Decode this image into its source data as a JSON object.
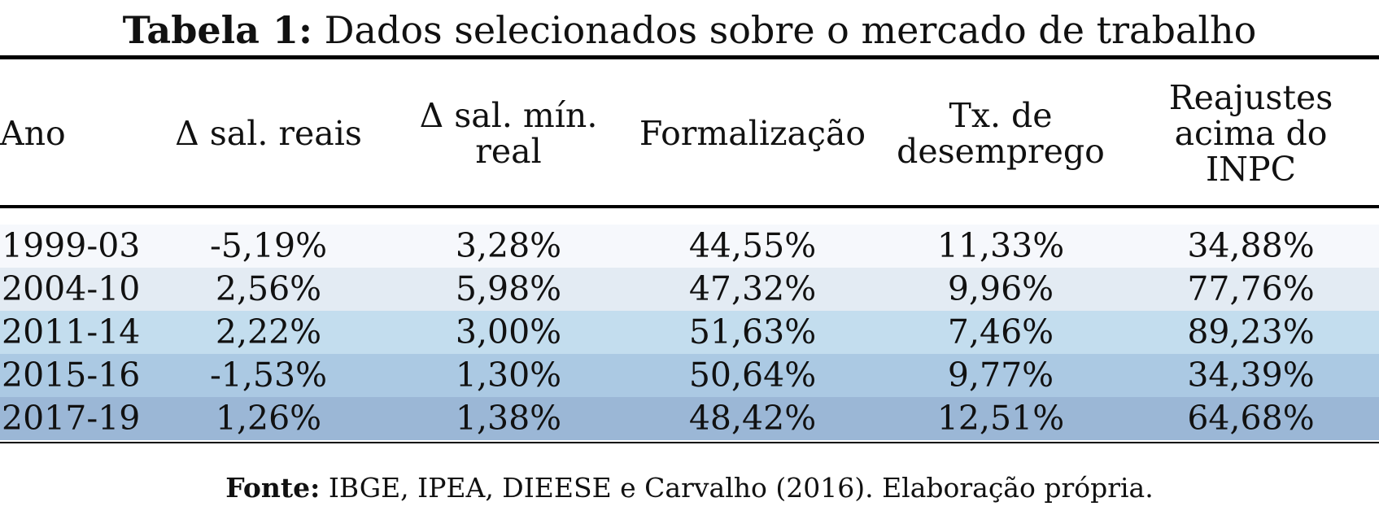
{
  "table": {
    "title_label": "Tabela 1:",
    "title_text": "Dados selecionados sobre o mercado de trabalho",
    "headers": [
      {
        "lines": [
          "Ano"
        ]
      },
      {
        "lines": [
          "Δ sal. reais"
        ]
      },
      {
        "lines": [
          "Δ sal. mín.",
          "real"
        ]
      },
      {
        "lines": [
          "Formalização"
        ]
      },
      {
        "lines": [
          "Tx. de",
          "desemprego"
        ]
      },
      {
        "lines": [
          "Reajustes",
          "acima do",
          "INPC"
        ]
      }
    ],
    "rows": [
      {
        "cells": [
          "1999-03",
          "-5,19%",
          "3,28%",
          "44,55%",
          "11,33%",
          "34,88%"
        ],
        "bg": "#f6f8fc"
      },
      {
        "cells": [
          "2004-10",
          "2,56%",
          "5,98%",
          "47,32%",
          "9,96%",
          "77,76%"
        ],
        "bg": "#e3ebf3"
      },
      {
        "cells": [
          "2011-14",
          "2,22%",
          "3,00%",
          "51,63%",
          "7,46%",
          "89,23%"
        ],
        "bg": "#c3ddee"
      },
      {
        "cells": [
          "2015-16",
          "-1,53%",
          "1,30%",
          "50,64%",
          "9,77%",
          "34,39%"
        ],
        "bg": "#abc9e3"
      },
      {
        "cells": [
          "2017-19",
          "1,26%",
          "1,38%",
          "48,42%",
          "12,51%",
          "64,68%"
        ],
        "bg": "#9bb7d6"
      }
    ]
  },
  "footnote": {
    "label": "Fonte:",
    "text": "IBGE, IPEA, DIEESE e Carvalho (2016). Elaboração própria."
  }
}
